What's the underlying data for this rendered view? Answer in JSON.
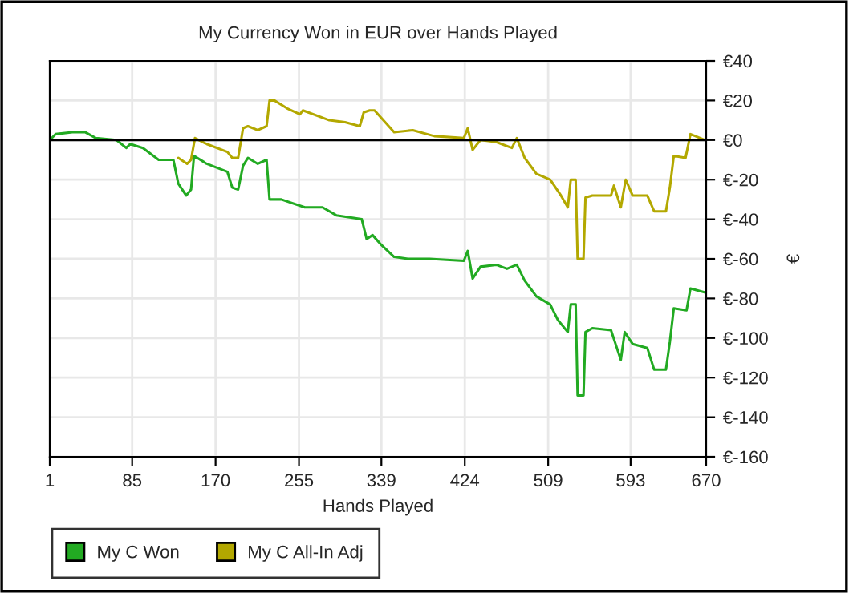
{
  "chart_data": {
    "type": "line",
    "title": "My Currency Won in EUR over Hands Played",
    "xlabel": "Hands Played",
    "ylabel": "€",
    "xlim": [
      1,
      670
    ],
    "xticks": [
      1,
      85,
      170,
      255,
      339,
      424,
      509,
      593,
      670
    ],
    "ylim": [
      -160,
      40
    ],
    "yticks": [
      {
        "value": 40,
        "label": "€40"
      },
      {
        "value": 20,
        "label": "€20"
      },
      {
        "value": 0,
        "label": "€0"
      },
      {
        "value": -20,
        "label": "€-20"
      },
      {
        "value": -40,
        "label": "€-40"
      },
      {
        "value": -60,
        "label": "€-60"
      },
      {
        "value": -80,
        "label": "€-80"
      },
      {
        "value": -100,
        "label": "€-100"
      },
      {
        "value": -120,
        "label": "€-120"
      },
      {
        "value": -140,
        "label": "€-140"
      },
      {
        "value": -160,
        "label": "€-160"
      }
    ],
    "grid": true,
    "legend": "bottom left",
    "marker": "none",
    "line_style": "solid",
    "ref_lines": [
      {
        "axis": "y",
        "value": 0,
        "color": "#000000"
      }
    ],
    "series": [
      {
        "name": "My C Won",
        "color": "#22aa22",
        "x": [
          1,
          7,
          24,
          37,
          48,
          69,
          79,
          83,
          96,
          112,
          127,
          132,
          140,
          145,
          148,
          161,
          182,
          187,
          193,
          198,
          203,
          213,
          222,
          225,
          237,
          261,
          279,
          293,
          319,
          324,
          330,
          339,
          352,
          366,
          388,
          423,
          427,
          432,
          440,
          456,
          467,
          477,
          485,
          497,
          511,
          519,
          529,
          532,
          537,
          539,
          545,
          547,
          554,
          573,
          583,
          587,
          595,
          610,
          617,
          629,
          633,
          637,
          650,
          654,
          669
        ],
        "values": [
          0,
          3,
          4,
          4,
          1,
          0,
          -4,
          -2,
          -4,
          -10,
          -10,
          -22,
          -28,
          -25,
          -8,
          -12,
          -16,
          -24,
          -25,
          -13,
          -9,
          -12,
          -10,
          -30,
          -30,
          -34,
          -34,
          -38,
          -40,
          -50,
          -48,
          -53,
          -59,
          -60,
          -60,
          -61,
          -56,
          -70,
          -64,
          -63,
          -65,
          -63,
          -71,
          -79,
          -83,
          -91,
          -97,
          -83,
          -83,
          -129,
          -129,
          -97,
          -95,
          -96,
          -111,
          -97,
          -103,
          -105,
          -116,
          -116,
          -102,
          -85,
          -86,
          -75,
          -77
        ]
      },
      {
        "name": "My C All-In Adj",
        "color": "#b3a800",
        "x": [
          132,
          141,
          145,
          149,
          161,
          182,
          187,
          193,
          198,
          203,
          213,
          222,
          225,
          230,
          243,
          256,
          259,
          286,
          302,
          317,
          321,
          327,
          332,
          352,
          371,
          393,
          423,
          427,
          432,
          440,
          456,
          472,
          477,
          485,
          497,
          511,
          522,
          529,
          532,
          537,
          539,
          545,
          547,
          554,
          573,
          576,
          583,
          588,
          595,
          610,
          617,
          629,
          633,
          637,
          649,
          654,
          669
        ],
        "values": [
          -9,
          -12,
          -10,
          1,
          -2,
          -6,
          -9,
          -9,
          6,
          7,
          5,
          7,
          20,
          20,
          16,
          13,
          15,
          10,
          9,
          7,
          14,
          15,
          15,
          4,
          5,
          2,
          1,
          6,
          -5,
          0,
          -1,
          -4,
          1,
          -9,
          -17,
          -20,
          -28,
          -34,
          -20,
          -20,
          -60,
          -60,
          -29,
          -28,
          -28,
          -23,
          -34,
          -20,
          -28,
          -28,
          -36,
          -36,
          -24,
          -8,
          -9,
          3,
          0
        ]
      }
    ]
  }
}
